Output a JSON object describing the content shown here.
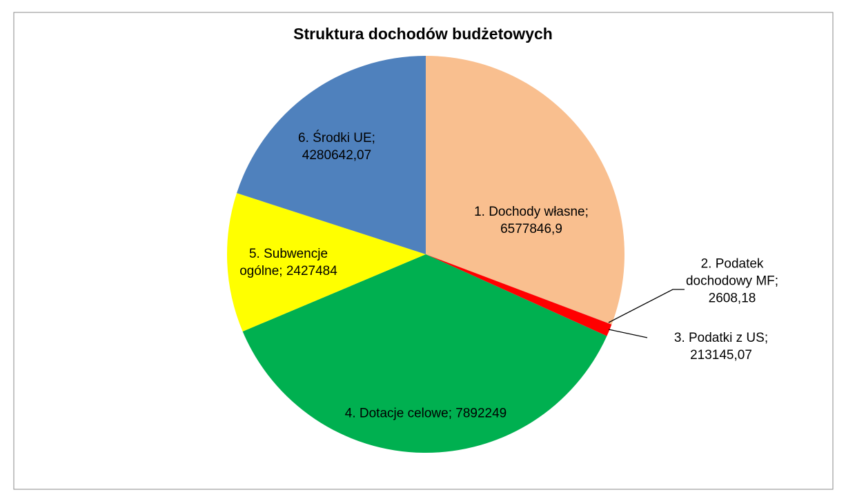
{
  "chart_data": {
    "type": "pie",
    "title": "Struktura dochodów budżetowych",
    "categories": [
      "1. Dochody własne;",
      "2. Podatek dochodowy MF;",
      "3. Podatki z US;",
      "4. Dotacje celowe;",
      "5. Subwencje ogólne;",
      "6. Środki UE;"
    ],
    "values": [
      6577846.9,
      2608.18,
      213145.07,
      7892249,
      2427484,
      4280642.07
    ],
    "value_labels": [
      "6577846,9",
      "2608,18",
      "213145,07",
      "7892249",
      "2427484",
      "4280642,07"
    ],
    "colors": [
      "#F9BF8F",
      "#C0504D",
      "#FF0000",
      "#00B050",
      "#FFFF00",
      "#4F81BD"
    ]
  }
}
